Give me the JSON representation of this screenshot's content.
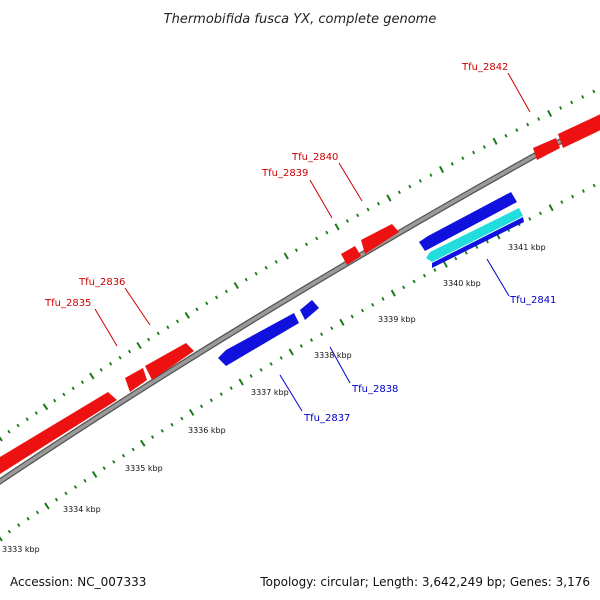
{
  "title": "Thermobifida fusca YX, complete genome",
  "footer": {
    "accession": "Accession: NC_007333",
    "summary": "Topology: circular; Length: 3,642,249 bp; Genes: 3,176"
  },
  "colors": {
    "backbone": "#888888",
    "backbone_edge": "#555555",
    "tick": "#1a7a1a",
    "forward_gene": "#ee1111",
    "reverse_gene": "#1111dd",
    "highlight_gene": "#22dddd",
    "forward_label": "#cc0000",
    "reverse_label": "#0000cc"
  },
  "kbp_labels": [
    "3333 kbp",
    "3334 kbp",
    "3335 kbp",
    "3336 kbp",
    "3337 kbp",
    "3338 kbp",
    "3339 kbp",
    "3340 kbp",
    "3341 kbp"
  ],
  "genes": [
    {
      "name": "Tfu_2835",
      "strand": "forward"
    },
    {
      "name": "Tfu_2836",
      "strand": "forward"
    },
    {
      "name": "Tfu_2837",
      "strand": "reverse"
    },
    {
      "name": "Tfu_2838",
      "strand": "reverse"
    },
    {
      "name": "Tfu_2839",
      "strand": "forward"
    },
    {
      "name": "Tfu_2840",
      "strand": "forward"
    },
    {
      "name": "Tfu_2841",
      "strand": "reverse"
    },
    {
      "name": "Tfu_2842",
      "strand": "forward"
    }
  ]
}
